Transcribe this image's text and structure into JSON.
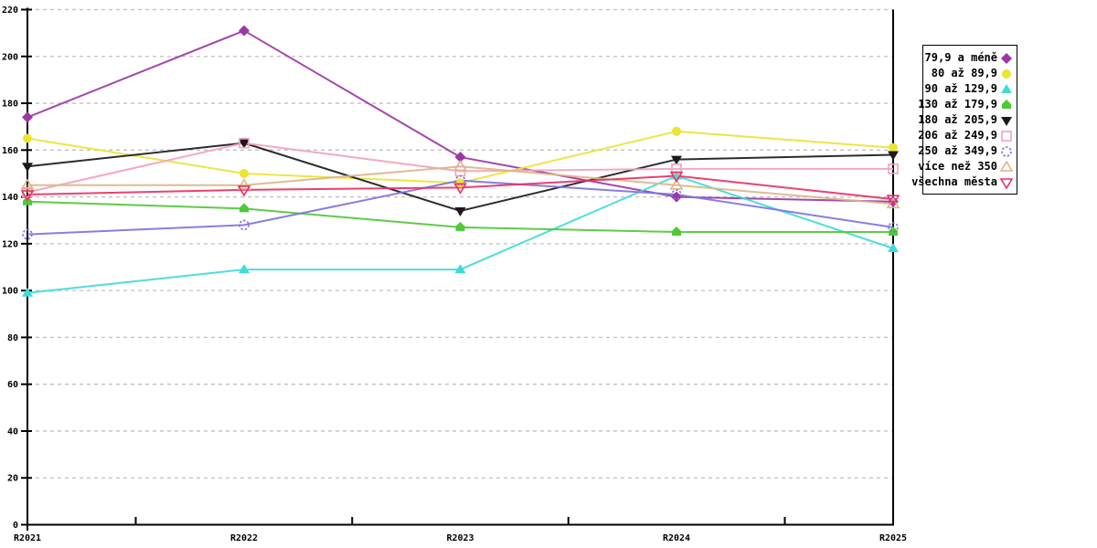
{
  "chart_data": {
    "type": "line",
    "title": "",
    "xlabel": "",
    "ylabel": "",
    "x_categories": [
      "R2021",
      "R2022",
      "R2023",
      "R2024",
      "R2025"
    ],
    "y_ticks": [
      0,
      20,
      40,
      60,
      80,
      100,
      120,
      140,
      160,
      180,
      200,
      220
    ],
    "ylim": [
      0,
      220
    ],
    "grid": "horizontal-dashed",
    "legend_position": "right",
    "series": [
      {
        "name": "79,9 a méně",
        "color": "#9c36a8",
        "marker": "diamond-filled",
        "values": [
          174,
          211,
          157,
          140,
          138
        ]
      },
      {
        "name": "80 až 89,9",
        "color": "#ebe431",
        "marker": "circle-filled",
        "values": [
          165,
          150,
          146,
          168,
          161
        ]
      },
      {
        "name": "90 až 129,9",
        "color": "#3fdbd9",
        "marker": "triangle-up-filled",
        "values": [
          99,
          109,
          109,
          149,
          118
        ]
      },
      {
        "name": "130 až 179,9",
        "color": "#50c838",
        "marker": "pentagon-filled",
        "values": [
          138,
          135,
          127,
          125,
          125
        ]
      },
      {
        "name": "180 až 205,9",
        "color": "#1a1a1a",
        "marker": "triangle-down-filled",
        "values": [
          153,
          163,
          134,
          156,
          158
        ]
      },
      {
        "name": "206 až 249,9",
        "color": "#f2a3bb",
        "marker": "square-open",
        "values": [
          142,
          163,
          151,
          152,
          152
        ]
      },
      {
        "name": "250 až 349,9",
        "color": "#7f72e0",
        "marker": "circle-open-dashed",
        "values": [
          124,
          128,
          147,
          141,
          127
        ]
      },
      {
        "name": "více než 350",
        "color": "#dcb588",
        "marker": "triangle-up-open",
        "values": [
          145,
          145,
          153,
          145,
          137
        ]
      },
      {
        "name": "všechna města",
        "color": "#ed2f62",
        "marker": "triangle-down-open",
        "values": [
          141,
          143,
          144,
          149,
          139
        ]
      }
    ],
    "colors": {
      "background": "#ffffff",
      "axis": "#000000",
      "gridline": "#c0c0c0"
    }
  }
}
